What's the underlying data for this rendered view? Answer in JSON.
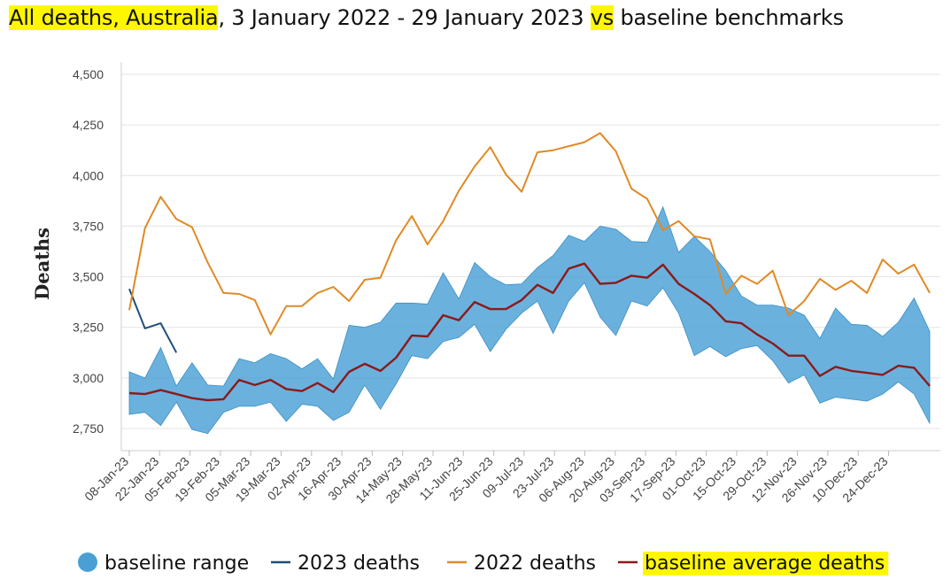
{
  "title": {
    "p1": "All deaths, Australia",
    "p2": ", 3 January 2022 - 29 January 2023 ",
    "p3": "vs",
    "p4": " baseline benchmarks"
  },
  "chart_data": {
    "type": "line",
    "ylabel": "Deaths",
    "xlabel": "",
    "ylim": [
      2650,
      4500
    ],
    "yticks": [
      2750,
      3000,
      3250,
      3500,
      3750,
      4000,
      4250,
      4500
    ],
    "ytick_labels": [
      "2,750",
      "3,000",
      "3,250",
      "3,500",
      "3,750",
      "4,000",
      "4,250",
      "4,500"
    ],
    "x_tick_labels": [
      "08-Jan-23",
      "22-Jan-23",
      "05-Feb-23",
      "19-Feb-23",
      "05-Mar-23",
      "19-Mar-23",
      "02-Apr-23",
      "16-Apr-23",
      "30-Apr-23",
      "14-May-23",
      "28-May-23",
      "11-Jun-23",
      "25-Jun-23",
      "09-Jul-23",
      "23-Jul-23",
      "06-Aug-23",
      "20-Aug-23",
      "03-Sep-23",
      "17-Sep-23",
      "01-Oct-23",
      "15-Oct-23",
      "29-Oct-23",
      "12-Nov-23",
      "26-Nov-23",
      "10-Dec-23",
      "24-Dec-23"
    ],
    "grid": true,
    "legend_position": "bottom",
    "series": [
      {
        "name": "baseline range",
        "kind": "range",
        "color": "#4aa0d5",
        "upper": [
          3030,
          3000,
          3150,
          2960,
          3075,
          2965,
          2960,
          3095,
          3075,
          3120,
          3095,
          3045,
          3095,
          2995,
          3260,
          3250,
          3275,
          3370,
          3370,
          3365,
          3520,
          3390,
          3570,
          3500,
          3460,
          3465,
          3545,
          3605,
          3705,
          3675,
          3750,
          3735,
          3675,
          3670,
          3845,
          3620,
          3700,
          3625,
          3530,
          3405,
          3360,
          3360,
          3345,
          3310,
          3195,
          3345,
          3265,
          3260,
          3205,
          3275,
          3395,
          3230
        ],
        "lower": [
          2820,
          2830,
          2765,
          2880,
          2745,
          2725,
          2830,
          2860,
          2860,
          2880,
          2785,
          2870,
          2860,
          2790,
          2830,
          2965,
          2845,
          2970,
          3110,
          3095,
          3180,
          3200,
          3265,
          3130,
          3240,
          3320,
          3380,
          3220,
          3380,
          3470,
          3300,
          3210,
          3380,
          3355,
          3445,
          3320,
          3110,
          3155,
          3105,
          3145,
          3160,
          3085,
          2975,
          3015,
          2875,
          2905,
          2895,
          2885,
          2920,
          2980,
          2920,
          2775
        ]
      },
      {
        "name": "2023 deaths",
        "color": "#1f4e79",
        "values": [
          3440,
          3245,
          3270,
          3125
        ]
      },
      {
        "name": "2022 deaths",
        "color": "#e08a24",
        "values": [
          3335,
          3740,
          3895,
          3785,
          3745,
          3570,
          3420,
          3415,
          3385,
          3215,
          3355,
          3355,
          3420,
          3450,
          3380,
          3485,
          3495,
          3680,
          3800,
          3660,
          3775,
          3925,
          4045,
          4140,
          4005,
          3920,
          4115,
          4125,
          4145,
          4165,
          4210,
          4120,
          3935,
          3885,
          3730,
          3775,
          3700,
          3685,
          3415,
          3505,
          3465,
          3530,
          3310,
          3380,
          3490,
          3435,
          3480,
          3420,
          3585,
          3515,
          3560,
          3420
        ]
      },
      {
        "name": "baseline average deaths",
        "color": "#8b1a1a",
        "values": [
          2925,
          2920,
          2940,
          2920,
          2900,
          2890,
          2895,
          2990,
          2965,
          2990,
          2945,
          2935,
          2975,
          2930,
          3030,
          3070,
          3035,
          3100,
          3210,
          3205,
          3310,
          3285,
          3375,
          3340,
          3340,
          3385,
          3460,
          3420,
          3540,
          3565,
          3465,
          3470,
          3505,
          3495,
          3560,
          3465,
          3415,
          3360,
          3280,
          3270,
          3215,
          3170,
          3110,
          3110,
          3010,
          3055,
          3035,
          3025,
          3015,
          3060,
          3050,
          2960
        ]
      }
    ]
  },
  "legend": [
    {
      "label": "baseline range",
      "marker": "circle",
      "color": "#4aa0d5",
      "highlight": false
    },
    {
      "label": "2023 deaths",
      "marker": "line",
      "color": "#1f4e79",
      "highlight": false
    },
    {
      "label": "2022 deaths",
      "marker": "line",
      "color": "#e08a24",
      "highlight": false
    },
    {
      "label": "baseline average deaths",
      "marker": "line",
      "color": "#8b1a1a",
      "highlight": true
    }
  ]
}
